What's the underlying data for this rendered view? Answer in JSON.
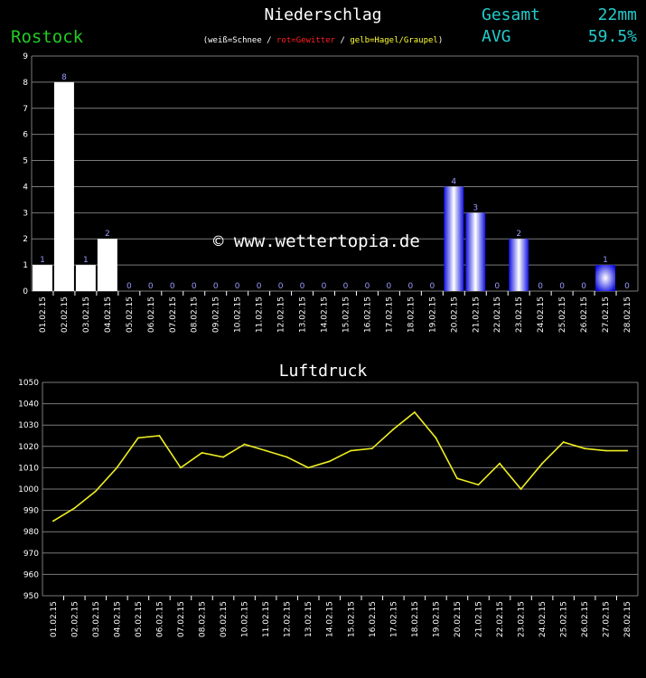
{
  "header": {
    "title": "Niederschlag",
    "city": "Rostock",
    "gesamt_label": "Gesamt",
    "gesamt_value": "22mm",
    "avg_label": "AVG",
    "avg_value": "59.5%",
    "legend_open": "(",
    "legend_white": "weiß=Schnee",
    "legend_sep1": " / ",
    "legend_red": "rot=Gewitter",
    "legend_sep2": " / ",
    "legend_yellow": "gelb=Hagel/Graupel",
    "legend_close": ")",
    "watermark": "© www.wettertopia.de"
  },
  "colors": {
    "snow": "#ffffff",
    "rain": "#1010e0",
    "grid": "#7a7a7a",
    "line": "#eeee22",
    "label": "#9999ff",
    "city": "#22cc22",
    "stats": "#22cccc"
  },
  "chart_data": [
    {
      "type": "bar",
      "title": "Niederschlag",
      "categories": [
        "01.02.15",
        "02.02.15",
        "03.02.15",
        "04.02.15",
        "05.02.15",
        "06.02.15",
        "07.02.15",
        "08.02.15",
        "09.02.15",
        "10.02.15",
        "11.02.15",
        "12.02.15",
        "13.02.15",
        "14.02.15",
        "15.02.15",
        "16.02.15",
        "17.02.15",
        "18.02.15",
        "19.02.15",
        "20.02.15",
        "21.02.15",
        "22.02.15",
        "23.02.15",
        "24.02.15",
        "25.02.15",
        "26.02.15",
        "27.02.15",
        "28.02.15"
      ],
      "values": [
        1,
        8,
        1,
        2,
        0,
        0,
        0,
        0,
        0,
        0,
        0,
        0,
        0,
        0,
        0,
        0,
        0,
        0,
        0,
        4,
        3,
        0,
        2,
        0,
        0,
        0,
        1,
        0
      ],
      "precip_type": [
        "snow",
        "snow",
        "snow",
        "snow",
        "none",
        "none",
        "none",
        "none",
        "none",
        "none",
        "none",
        "none",
        "none",
        "none",
        "none",
        "none",
        "none",
        "none",
        "none",
        "rain",
        "rain",
        "none",
        "rain",
        "none",
        "none",
        "none",
        "rain",
        "none"
      ],
      "ylim": [
        0,
        9
      ],
      "yticks": [
        0,
        1,
        2,
        3,
        4,
        5,
        6,
        7,
        8,
        9
      ],
      "grid": true
    },
    {
      "type": "line",
      "title": "Luftdruck",
      "categories": [
        "01.02.15",
        "02.02.15",
        "03.02.15",
        "04.02.15",
        "05.02.15",
        "06.02.15",
        "07.02.15",
        "08.02.15",
        "09.02.15",
        "10.02.15",
        "11.02.15",
        "12.02.15",
        "13.02.15",
        "14.02.15",
        "15.02.15",
        "16.02.15",
        "17.02.15",
        "18.02.15",
        "19.02.15",
        "20.02.15",
        "21.02.15",
        "22.02.15",
        "23.02.15",
        "24.02.15",
        "25.02.15",
        "26.02.15",
        "27.02.15",
        "28.02.15"
      ],
      "values": [
        985,
        991,
        999,
        1010,
        1024,
        1025,
        1010,
        1017,
        1015,
        1021,
        1018,
        1015,
        1010,
        1013,
        1018,
        1019,
        1028,
        1036,
        1024,
        1005,
        1002,
        1012,
        1000,
        1012,
        1022,
        1019,
        1018,
        1018
      ],
      "ylim": [
        950,
        1050
      ],
      "yticks": [
        950,
        960,
        970,
        980,
        990,
        1000,
        1010,
        1020,
        1030,
        1040,
        1050
      ],
      "grid": true
    }
  ]
}
